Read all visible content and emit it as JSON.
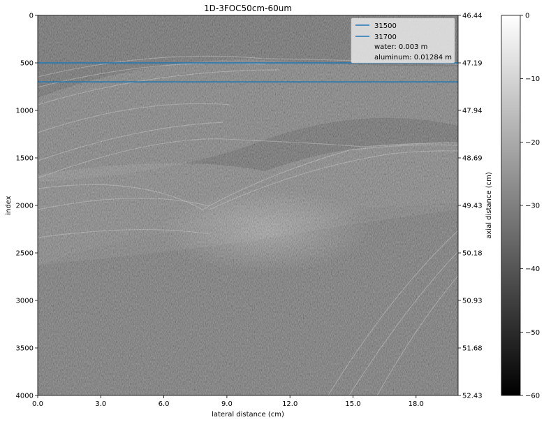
{
  "chart_data": {
    "type": "heatmap",
    "title": "1D-3FOC50cm-60um",
    "xlabel": "lateral distance (cm)",
    "ylabel_left": "index",
    "ylabel_right": "axial distance (cm)",
    "x_ticks": [
      "0.0",
      "3.0",
      "6.0",
      "9.0",
      "12.0",
      "15.0",
      "18.0"
    ],
    "x_tick_values": [
      0,
      3,
      6,
      9,
      12,
      15,
      18
    ],
    "xlim": [
      0,
      20
    ],
    "y_left_ticks": [
      "0",
      "500",
      "1000",
      "1500",
      "2000",
      "2500",
      "3000",
      "3500",
      "4000"
    ],
    "y_left_values": [
      0,
      500,
      1000,
      1500,
      2000,
      2500,
      3000,
      3500,
      4000
    ],
    "ylim_left": [
      4000,
      0
    ],
    "y_right_ticks": [
      "46.44",
      "47.19",
      "47.94",
      "48.69",
      "49.43",
      "50.18",
      "50.93",
      "51.68",
      "52.43"
    ],
    "colorbar": {
      "ticks": [
        "0",
        "−10",
        "−20",
        "−30",
        "−40",
        "−50",
        "−60"
      ],
      "values": [
        0,
        -10,
        -20,
        -30,
        -40,
        -50,
        -60
      ],
      "range": [
        -60,
        0
      ],
      "colormap": "gray"
    },
    "hlines": [
      {
        "name": "31500",
        "y": 500,
        "color": "#1f77b4"
      },
      {
        "name": "31700",
        "y": 700,
        "color": "#1f77b4"
      }
    ],
    "legend": {
      "placement": "top-right",
      "entries": [
        "31500",
        "31700",
        "water: 0.003 m",
        "aluminum: 0.01284 m"
      ]
    }
  }
}
